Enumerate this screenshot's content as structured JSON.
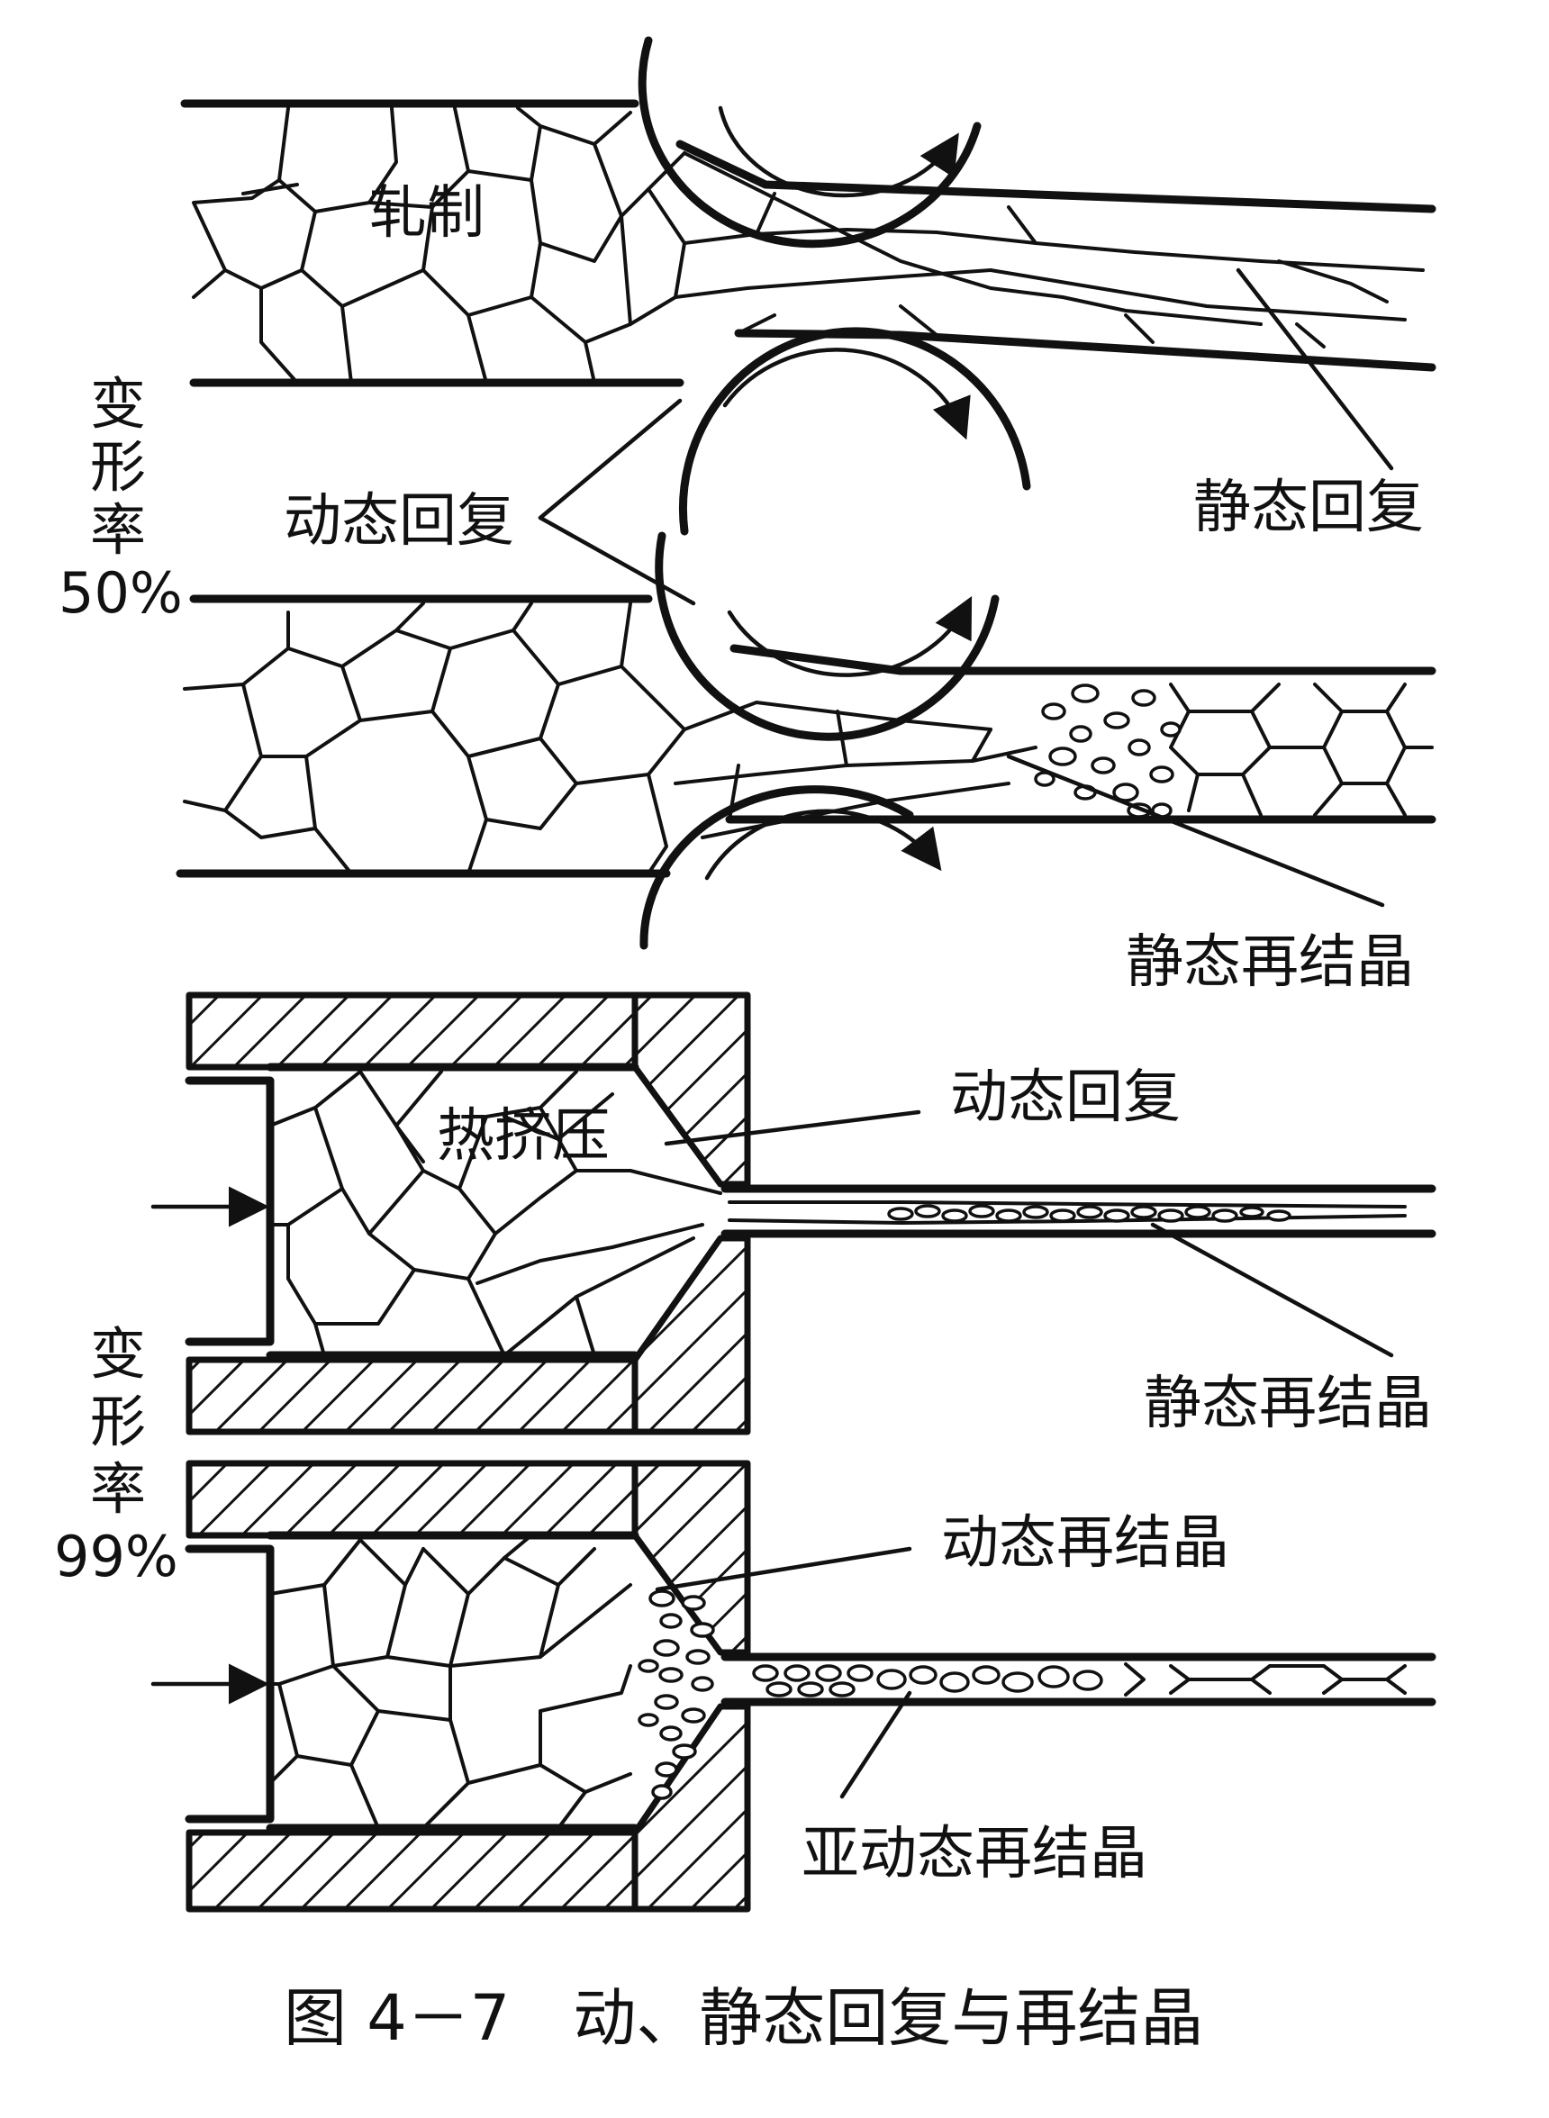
{
  "figure": {
    "caption": "图 4－7　动、静态回复与再结晶",
    "panels": [
      {
        "id": "rolling",
        "deformation_label": [
          "变",
          "形",
          "率",
          "50%"
        ],
        "labels": {
          "process": "轧制",
          "dynamic_recovery": "动态回复",
          "static_recovery": "静态回复",
          "static_recrystallization": "静态再结晶"
        }
      },
      {
        "id": "extrusion",
        "deformation_label": [
          "变",
          "形",
          "率",
          "99%"
        ],
        "labels": {
          "process": "热挤压",
          "dynamic_recovery": "动态回复",
          "static_recrystallization": "静态再结晶",
          "dynamic_recrystallization": "动态再结晶",
          "metadynamic_recrystallization": "亚动态再结晶"
        }
      }
    ]
  }
}
